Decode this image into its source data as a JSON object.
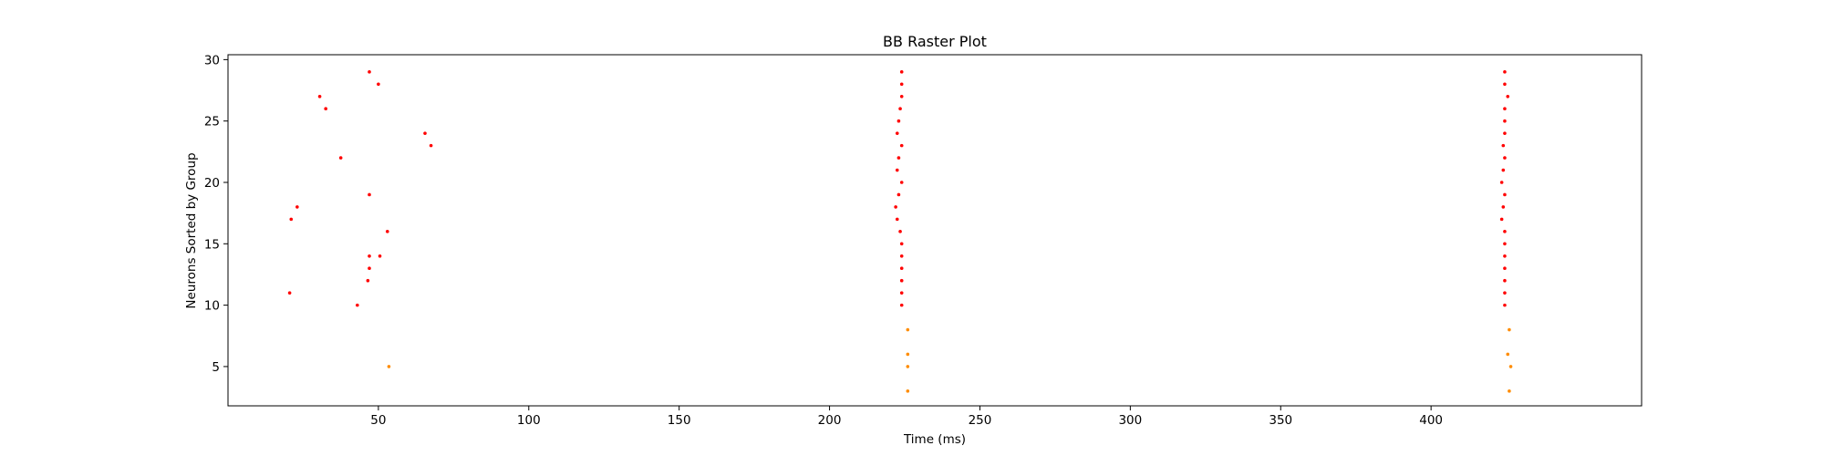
{
  "chart_data": {
    "type": "scatter",
    "title": "BB Raster Plot",
    "xlabel": "Time (ms)",
    "ylabel": "Neurons Sorted by Group",
    "xlim": [
      0,
      470
    ],
    "ylim": [
      1.8,
      30.4
    ],
    "xticks": [
      50,
      100,
      150,
      200,
      250,
      300,
      350,
      400
    ],
    "yticks": [
      5,
      10,
      15,
      20,
      25,
      30
    ],
    "grid": false,
    "series": [
      {
        "color": "#ff0000",
        "x": [
          20.5,
          21,
          23,
          30.5,
          32.5,
          37.5,
          43,
          46.5,
          47,
          47,
          47,
          47,
          50,
          50.5,
          53,
          65.5,
          67.5,
          224,
          224,
          224,
          224,
          224,
          224,
          223.5,
          222.5,
          222,
          223,
          224,
          222.5,
          223,
          224,
          222.5,
          223,
          223.5,
          224,
          224,
          224,
          424.5,
          424.5,
          424.5,
          424.5,
          424.5,
          424.5,
          424.5,
          423.5,
          424,
          424.5,
          423.5,
          424,
          424.5,
          424,
          424.5,
          424.5,
          424.5,
          425.5,
          424.5,
          424.5
        ],
        "y": [
          11,
          17,
          18,
          27,
          26,
          22,
          10,
          12,
          13,
          19,
          29,
          14,
          28,
          14,
          16,
          24,
          23,
          10,
          11,
          12,
          13,
          14,
          15,
          16,
          17,
          18,
          19,
          20,
          21,
          22,
          23,
          24,
          25,
          26,
          27,
          28,
          29,
          10,
          11,
          12,
          13,
          14,
          15,
          16,
          17,
          18,
          19,
          20,
          21,
          22,
          23,
          24,
          25,
          26,
          27,
          28,
          29
        ]
      },
      {
        "color": "#ff8c00",
        "x": [
          53.5,
          226,
          226,
          226,
          226,
          426,
          425.5,
          426.5,
          426
        ],
        "y": [
          5,
          3,
          5,
          6,
          8,
          3,
          6,
          5,
          8
        ]
      }
    ]
  }
}
